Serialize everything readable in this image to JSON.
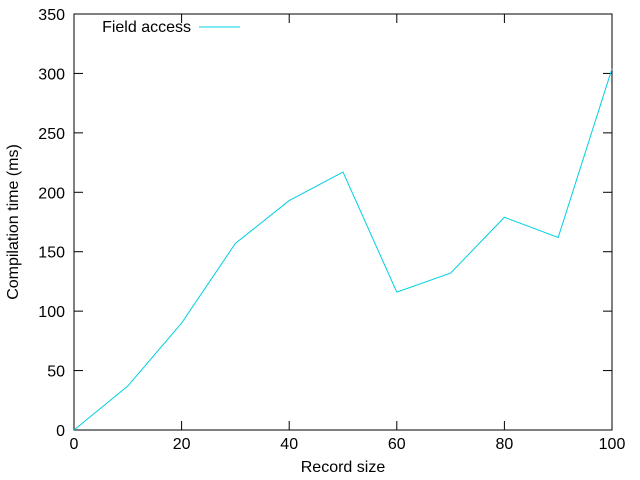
{
  "chart_data": {
    "type": "line",
    "title": "",
    "xlabel": "Record size",
    "ylabel": "Compilation time (ms)",
    "xlim": [
      0,
      100
    ],
    "ylim": [
      0,
      350
    ],
    "x_ticks": [
      0,
      20,
      40,
      60,
      80,
      100
    ],
    "y_ticks": [
      0,
      50,
      100,
      150,
      200,
      250,
      300,
      350
    ],
    "grid": false,
    "legend_position": "top-left",
    "series": [
      {
        "name": "Field access",
        "color": "#00d0e0",
        "x": [
          0,
          10,
          20,
          30,
          40,
          50,
          60,
          70,
          80,
          90,
          100
        ],
        "y": [
          0,
          37,
          90,
          157,
          193,
          217,
          116,
          132,
          179,
          162,
          304
        ]
      }
    ]
  }
}
